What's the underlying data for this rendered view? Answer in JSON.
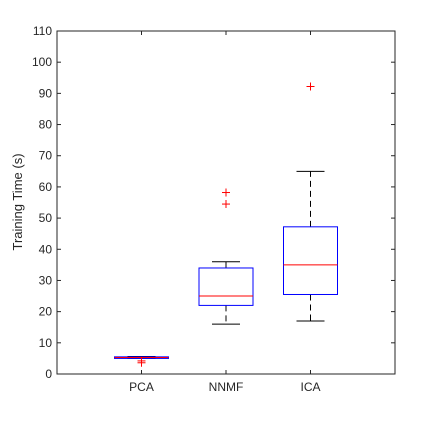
{
  "chart_data": {
    "type": "box",
    "title": "",
    "xlabel": "",
    "ylabel": "Training Time (s)",
    "ylim": [
      0,
      110
    ],
    "yticks": [
      0,
      10,
      20,
      30,
      40,
      50,
      60,
      70,
      80,
      90,
      100,
      110
    ],
    "grid": false,
    "categories": [
      "PCA",
      "NNMF",
      "ICA"
    ],
    "boxes": [
      {
        "category": "PCA",
        "whisker_low": 5.0,
        "q1": 5.0,
        "median": 5.3,
        "q3": 5.5,
        "whisker_high": 5.6,
        "outliers": [
          3.6,
          4.2
        ]
      },
      {
        "category": "NNMF",
        "whisker_low": 16.0,
        "q1": 22.0,
        "median": 25.0,
        "q3": 34.0,
        "whisker_high": 36.0,
        "outliers": [
          54.5,
          58.2
        ]
      },
      {
        "category": "ICA",
        "whisker_low": 17.0,
        "q1": 25.5,
        "median": 35.0,
        "q3": 47.2,
        "whisker_high": 65.0,
        "outliers": [
          92.2
        ]
      }
    ],
    "colors": {
      "box": "#0000ff",
      "median": "#ff0000",
      "whisker": "#000000",
      "outlier": "#ff0000",
      "axes": "#262626"
    }
  }
}
